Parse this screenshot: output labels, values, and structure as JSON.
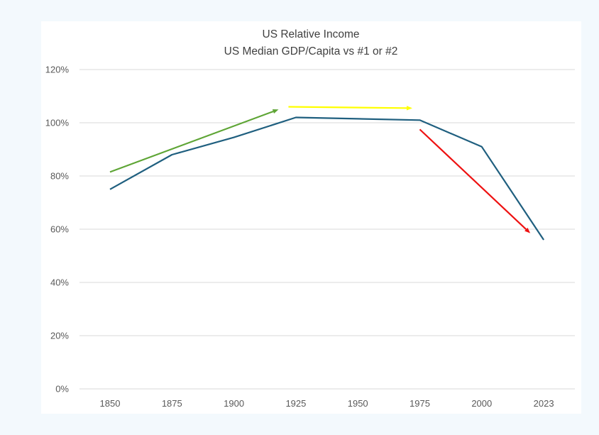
{
  "chart_data": {
    "type": "line",
    "title": "US Relative Income",
    "subtitle": "US Median GDP/Capita vs #1 or #2",
    "categories": [
      "1850",
      "1875",
      "1900",
      "1925",
      "1950",
      "1975",
      "2000",
      "2023"
    ],
    "series": [
      {
        "values": [
          75,
          88,
          94.5,
          102,
          101.5,
          101,
          91,
          56
        ],
        "color": "#1f5f7f"
      }
    ],
    "y_ticks": [
      "0%",
      "20%",
      "40%",
      "60%",
      "80%",
      "100%",
      "120%"
    ],
    "ylim": [
      0,
      120
    ],
    "grid": true,
    "annotations": [
      {
        "kind": "arrow",
        "color": "#5ea535",
        "from": [
          "1850",
          81.5
        ],
        "to": [
          "1918",
          105
        ]
      },
      {
        "kind": "arrow",
        "color": "#ffff00",
        "from": [
          "1922",
          106
        ],
        "to": [
          "1972",
          105.5
        ]
      },
      {
        "kind": "arrow",
        "color": "#ee1111",
        "from": [
          "1975",
          97.5
        ],
        "to": [
          "2018",
          58.5
        ]
      }
    ],
    "colors": {
      "grid": "#d9d9d9",
      "background": "#f3f9fd",
      "plot_background": "#ffffff"
    }
  }
}
